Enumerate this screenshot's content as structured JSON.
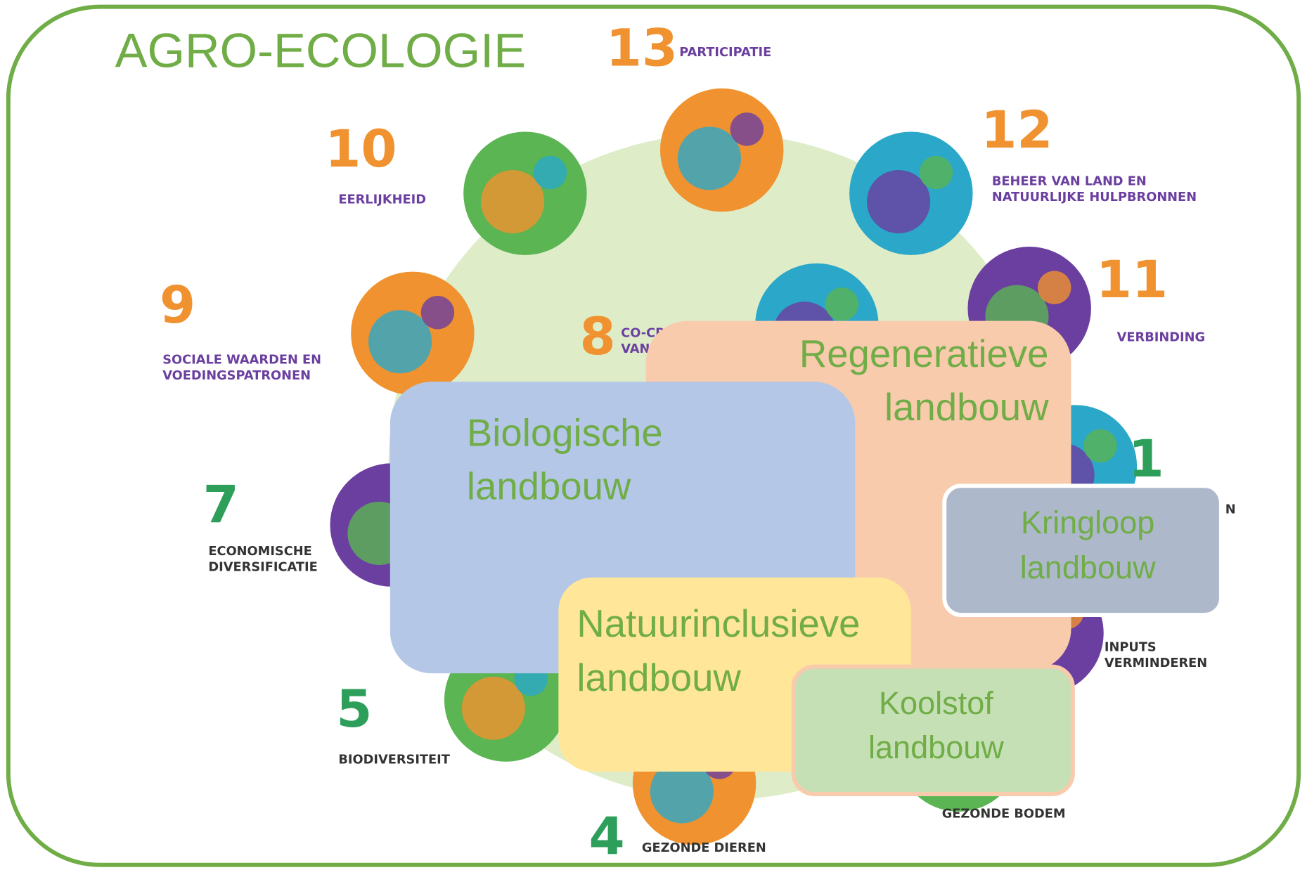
{
  "title": "AGRO-ECOLOGIE",
  "principles": [
    {
      "number": "13",
      "label": [
        "PARTICIPATIE"
      ]
    },
    {
      "number": "12",
      "label": [
        "BEHEER VAN LAND EN",
        "NATUURLIJKE HULPBRONNEN"
      ]
    },
    {
      "number": "11",
      "label": [
        "VERBINDING"
      ]
    },
    {
      "number": "10",
      "label": [
        "EERLIJKHEID"
      ]
    },
    {
      "number": "9",
      "label": [
        "SOCIALE WAARDEN EN",
        "VOEDINGSPATRONEN"
      ]
    },
    {
      "number": "8",
      "label": [
        "CO-CRE",
        "VAN"
      ]
    },
    {
      "number": "7",
      "label": [
        "ECONOMISCHE",
        "DIVERSIFICATIE"
      ]
    },
    {
      "number": "5",
      "label": [
        "BIODIVERSITEIT"
      ]
    },
    {
      "number": "4",
      "label": [
        "GEZONDE DIEREN"
      ]
    },
    {
      "number": "1",
      "label": [
        "N"
      ]
    },
    {
      "label": [
        "INPUTS",
        "VERMINDEREN"
      ]
    },
    {
      "label": [
        "GEZONDE BODEM"
      ]
    }
  ],
  "boxes": [
    {
      "label": [
        "Regeneratieve",
        "landbouw"
      ]
    },
    {
      "label": [
        "Biologische",
        "landbouw"
      ]
    },
    {
      "label": [
        "Kringloop",
        "landbouw"
      ]
    },
    {
      "label": [
        "Natuurinclusieve",
        "landbouw"
      ]
    },
    {
      "label": [
        "Koolstof",
        "landbouw"
      ]
    }
  ]
}
